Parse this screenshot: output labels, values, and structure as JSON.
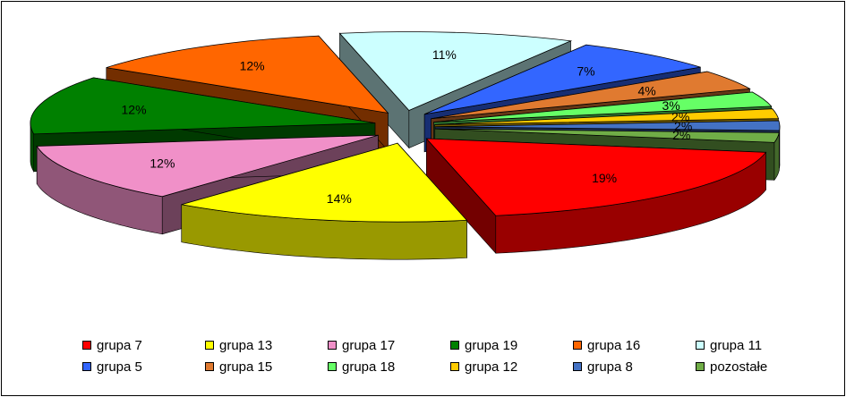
{
  "chart_data": {
    "type": "pie",
    "title": "",
    "style": "3d-exploded",
    "legend_position": "bottom",
    "slices": [
      {
        "name": "grupa 7",
        "value": 19,
        "label": "19%",
        "color": "#FF0000"
      },
      {
        "name": "grupa 13",
        "value": 14,
        "label": "14%",
        "color": "#FFFF00"
      },
      {
        "name": "grupa 17",
        "value": 12,
        "label": "12%",
        "color": "#F090C8"
      },
      {
        "name": "grupa 19",
        "value": 12,
        "label": "12%",
        "color": "#008000"
      },
      {
        "name": "grupa 16",
        "value": 12,
        "label": "12%",
        "color": "#FF6600"
      },
      {
        "name": "grupa 11",
        "value": 11,
        "label": "11%",
        "color": "#CCFFFF"
      },
      {
        "name": "grupa 5",
        "value": 7,
        "label": "7%",
        "color": "#3366FF"
      },
      {
        "name": "grupa 15",
        "value": 4,
        "label": "4%",
        "color": "#E07A30"
      },
      {
        "name": "grupa 18",
        "value": 3,
        "label": "3%",
        "color": "#66FF66"
      },
      {
        "name": "grupa 12",
        "value": 2,
        "label": "2%",
        "color": "#FFCC00"
      },
      {
        "name": "grupa 8",
        "value": 2,
        "label": "2%",
        "color": "#4472C4"
      },
      {
        "name": "pozostałe",
        "value": 2,
        "label": "2%",
        "color": "#70AD47"
      }
    ]
  }
}
